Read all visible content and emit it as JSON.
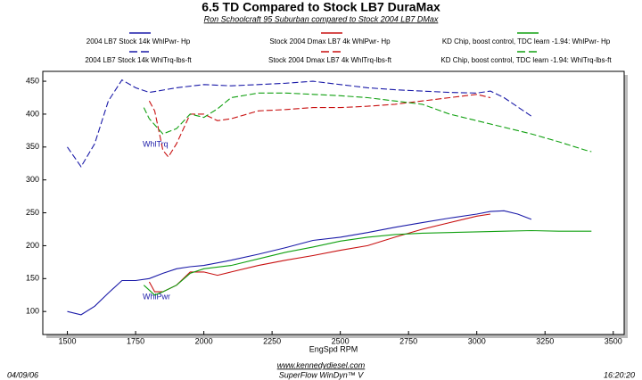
{
  "chart_data": {
    "type": "line",
    "title": "6.5 TD Compared to Stock LB7 DuraMax",
    "subtitle": "Ron Schoolcraft 95 Suburban compared to Stock 2004 LB7 DMax",
    "x_label": "EngSpd  RPM",
    "xlim": [
      1410,
      3540
    ],
    "xticks": [
      1500,
      1750,
      2000,
      2250,
      2500,
      2750,
      3000,
      3250,
      3500
    ],
    "ylim": [
      65,
      465
    ],
    "yticks": [
      100,
      150,
      200,
      250,
      300,
      350,
      400,
      450
    ],
    "grid": false,
    "annotations": [
      "WhlTrq",
      "WhlPwr"
    ],
    "footer": {
      "date": "04/09/06",
      "url": "www.kennedydiesel.com",
      "software": "SuperFlow WinDyn™ V",
      "time": "16:20:20"
    },
    "series": [
      {
        "name": "2004 LB7 Stock 14k WhlPwr-  Hp",
        "color": "#1a1aa8",
        "style": "solid",
        "x": [
          1500,
          1550,
          1600,
          1650,
          1700,
          1750,
          1800,
          1850,
          1900,
          1950,
          2000,
          2100,
          2200,
          2300,
          2400,
          2500,
          2600,
          2700,
          2800,
          2900,
          3000,
          3050,
          3100,
          3150,
          3200
        ],
        "values": [
          100,
          95,
          108,
          128,
          147,
          147,
          150,
          158,
          165,
          168,
          170,
          178,
          187,
          197,
          208,
          213,
          220,
          228,
          235,
          242,
          248,
          252,
          253,
          248,
          240
        ]
      },
      {
        "name": "Stock 2004 Dmax LB7 4k WhlPwr-  Hp",
        "color": "#c81010",
        "style": "solid",
        "x": [
          1800,
          1820,
          1850,
          1900,
          1950,
          2000,
          2050,
          2100,
          2200,
          2300,
          2400,
          2500,
          2600,
          2700,
          2800,
          2900,
          3000,
          3050
        ],
        "values": [
          145,
          130,
          130,
          140,
          160,
          160,
          155,
          160,
          170,
          178,
          185,
          193,
          200,
          213,
          225,
          235,
          245,
          248
        ]
      },
      {
        "name": "KD Chip, boost control, TDC learn -1.94: WhlPwr-  Hp",
        "color": "#10a010",
        "style": "solid",
        "x": [
          1780,
          1820,
          1850,
          1900,
          1950,
          2000,
          2100,
          2200,
          2300,
          2400,
          2500,
          2600,
          2700,
          2800,
          2900,
          3000,
          3100,
          3200,
          3300,
          3400,
          3420
        ],
        "values": [
          140,
          125,
          130,
          140,
          158,
          165,
          170,
          180,
          190,
          198,
          207,
          213,
          217,
          219,
          220,
          221,
          222,
          223,
          222,
          222,
          222
        ]
      },
      {
        "name": "2004 LB7 Stock 14k WhlTrq-lbs-ft",
        "color": "#1a1aa8",
        "style": "dashed",
        "x": [
          1500,
          1550,
          1600,
          1650,
          1700,
          1750,
          1800,
          1900,
          2000,
          2100,
          2200,
          2300,
          2400,
          2500,
          2600,
          2700,
          2800,
          2900,
          3000,
          3050,
          3100,
          3200
        ],
        "values": [
          350,
          320,
          355,
          420,
          452,
          440,
          433,
          440,
          445,
          443,
          445,
          447,
          450,
          445,
          440,
          437,
          435,
          433,
          432,
          435,
          425,
          397
        ]
      },
      {
        "name": "Stock 2004 Dmax LB7 4k WhlTrq-lbs-ft",
        "color": "#c81010",
        "style": "dashed",
        "x": [
          1800,
          1820,
          1850,
          1870,
          1900,
          1950,
          2000,
          2050,
          2100,
          2200,
          2300,
          2400,
          2500,
          2600,
          2700,
          2800,
          2900,
          3000,
          3050
        ],
        "values": [
          420,
          405,
          345,
          335,
          355,
          400,
          400,
          390,
          393,
          405,
          407,
          410,
          410,
          412,
          415,
          420,
          425,
          430,
          425
        ]
      },
      {
        "name": "KD Chip, boost control, TDC learn -1.94: WhlTrq-lbs-ft",
        "color": "#10a010",
        "style": "dashed",
        "x": [
          1780,
          1800,
          1850,
          1900,
          1950,
          2000,
          2050,
          2100,
          2200,
          2300,
          2400,
          2500,
          2600,
          2700,
          2800,
          2900,
          3000,
          3100,
          3200,
          3300,
          3400,
          3420
        ],
        "values": [
          410,
          393,
          370,
          378,
          400,
          395,
          408,
          425,
          432,
          432,
          430,
          428,
          425,
          420,
          415,
          400,
          390,
          380,
          370,
          358,
          345,
          343
        ]
      }
    ]
  }
}
